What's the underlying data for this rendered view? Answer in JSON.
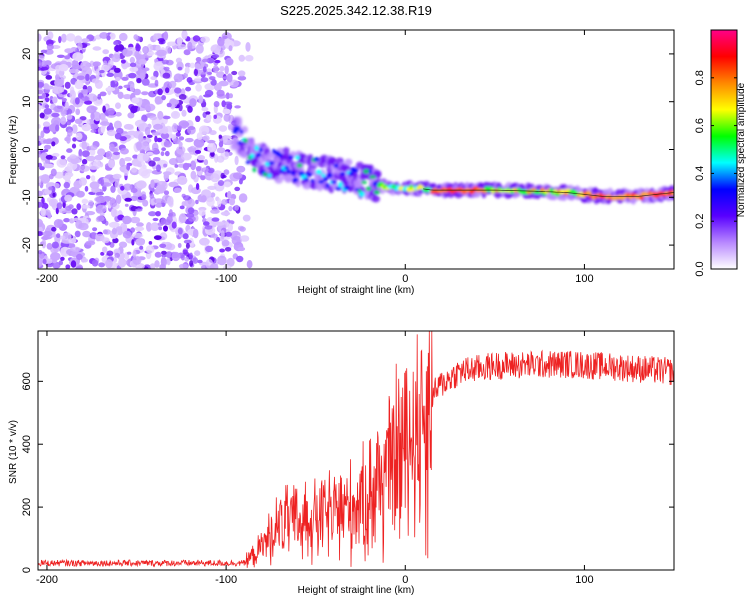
{
  "title": "S225.2025.342.12.38.R19",
  "chart_data": [
    {
      "type": "heatmap",
      "name": "spectrogram",
      "xlabel": "Height of straight line (km)",
      "ylabel": "Frequency (Hz)",
      "xlim": [
        -205,
        150
      ],
      "ylim": [
        -25,
        25
      ],
      "xticks": [
        -200,
        -100,
        0,
        100
      ],
      "yticks": [
        -20,
        -10,
        0,
        10,
        20
      ],
      "noise_region_x": [
        -205,
        -90
      ],
      "noise_ylim": [
        -25,
        24
      ],
      "signal_track": [
        {
          "x": -93,
          "y": 3.0
        },
        {
          "x": -85,
          "y": -1.5
        },
        {
          "x": -75,
          "y": -3.0
        },
        {
          "x": -65,
          "y": -3.5
        },
        {
          "x": -55,
          "y": -4.5
        },
        {
          "x": -45,
          "y": -5.0
        },
        {
          "x": -35,
          "y": -5.5
        },
        {
          "x": -25,
          "y": -6.5
        },
        {
          "x": -15,
          "y": -7.5
        },
        {
          "x": -5,
          "y": -8.0
        },
        {
          "x": 5,
          "y": -8.0
        },
        {
          "x": 15,
          "y": -8.5
        },
        {
          "x": 30,
          "y": -8.5
        },
        {
          "x": 50,
          "y": -8.5
        },
        {
          "x": 70,
          "y": -8.7
        },
        {
          "x": 90,
          "y": -9.0
        },
        {
          "x": 110,
          "y": -9.8
        },
        {
          "x": 130,
          "y": -9.8
        },
        {
          "x": 150,
          "y": -9.0
        }
      ],
      "colorbar": {
        "label": "Normalized spectral amplitude",
        "range": [
          0.0,
          1.0
        ],
        "ticks": [
          "0.0",
          "0.2",
          "0.4",
          "0.6",
          "0.8"
        ],
        "colors": [
          "#ffffff",
          "#b888ff",
          "#5800ff",
          "#0000ff",
          "#00ffff",
          "#00ff00",
          "#ffff00",
          "#ff8800",
          "#ff0000",
          "#ff0088"
        ]
      }
    },
    {
      "type": "line",
      "name": "snr",
      "xlabel": "Height of straight line (km)",
      "ylabel": "SNR (10 * v/v)",
      "xlim": [
        -205,
        150
      ],
      "ylim": [
        0,
        760
      ],
      "xticks": [
        -200,
        -100,
        0,
        100
      ],
      "yticks": [
        0,
        200,
        400,
        600
      ],
      "color": "#ee2222",
      "trend": [
        {
          "x": -205,
          "y": 22
        },
        {
          "x": -90,
          "y": 22
        },
        {
          "x": -80,
          "y": 80
        },
        {
          "x": -70,
          "y": 160
        },
        {
          "x": -50,
          "y": 175
        },
        {
          "x": -30,
          "y": 210
        },
        {
          "x": -20,
          "y": 260
        },
        {
          "x": -10,
          "y": 330
        },
        {
          "x": 0,
          "y": 430
        },
        {
          "x": 10,
          "y": 520
        },
        {
          "x": 20,
          "y": 590
        },
        {
          "x": 30,
          "y": 630
        },
        {
          "x": 50,
          "y": 650
        },
        {
          "x": 90,
          "y": 655
        },
        {
          "x": 120,
          "y": 645
        },
        {
          "x": 150,
          "y": 630
        }
      ]
    }
  ]
}
